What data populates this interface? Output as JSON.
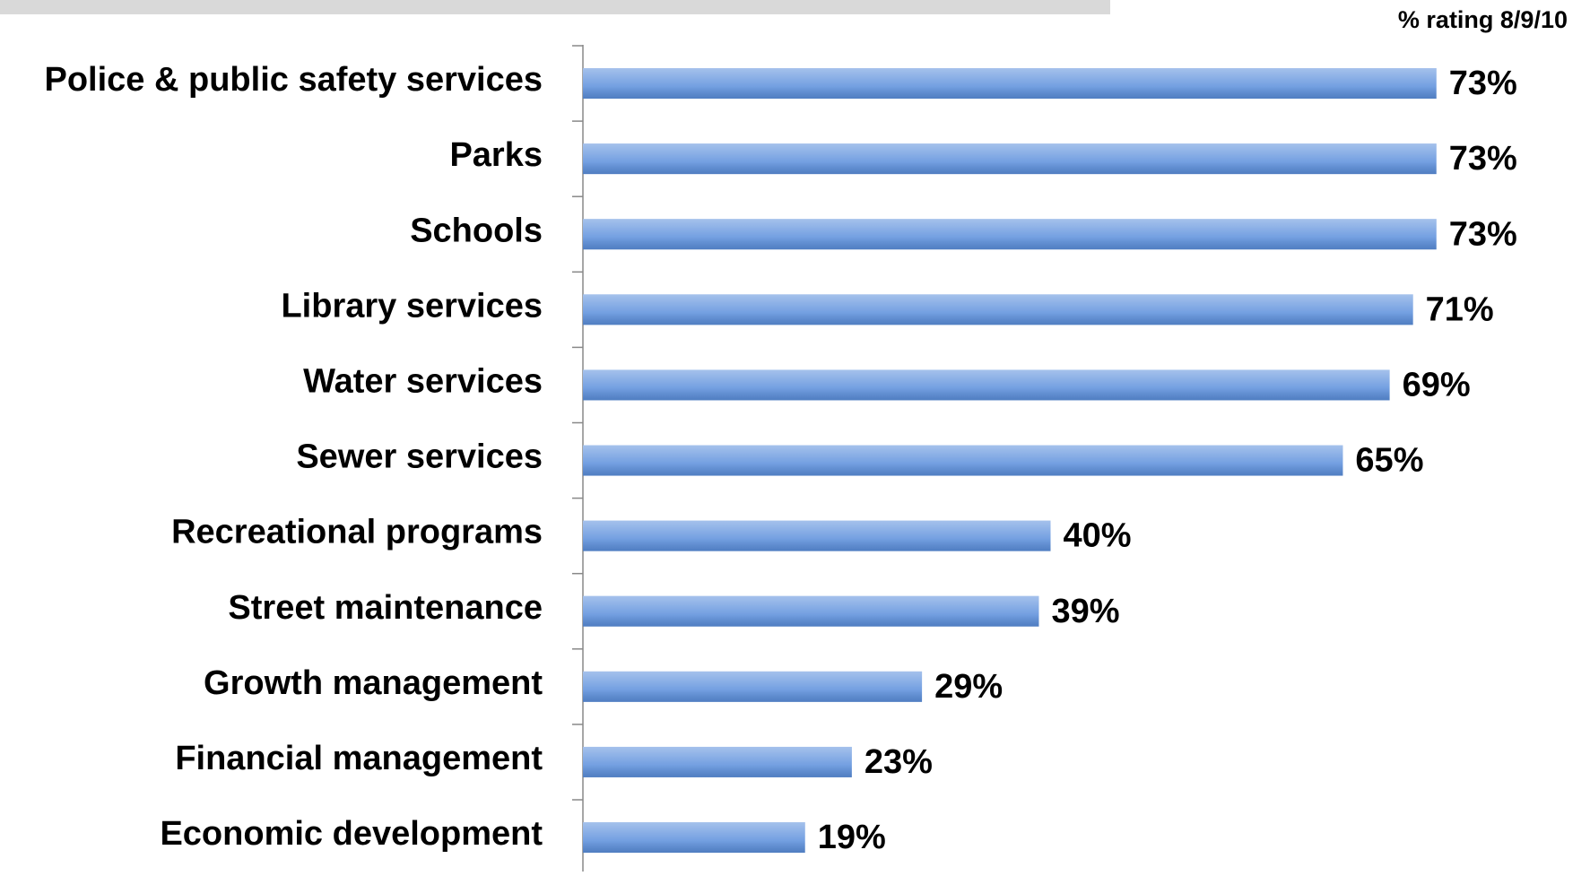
{
  "chart_data": {
    "type": "bar",
    "orientation": "horizontal",
    "subtitle": "% rating 8/9/10",
    "categories": [
      "Police & public safety services",
      "Parks",
      "Schools",
      "Library services",
      "Water services",
      "Sewer services",
      "Recreational programs",
      "Street maintenance",
      "Growth management",
      "Financial management",
      "Economic development"
    ],
    "values": [
      73,
      73,
      73,
      71,
      69,
      65,
      40,
      39,
      29,
      23,
      19
    ],
    "value_labels": [
      "73%",
      "73%",
      "73%",
      "71%",
      "69%",
      "65%",
      "40%",
      "39%",
      "29%",
      "23%",
      "19%"
    ],
    "color": "#5b8fdc"
  }
}
